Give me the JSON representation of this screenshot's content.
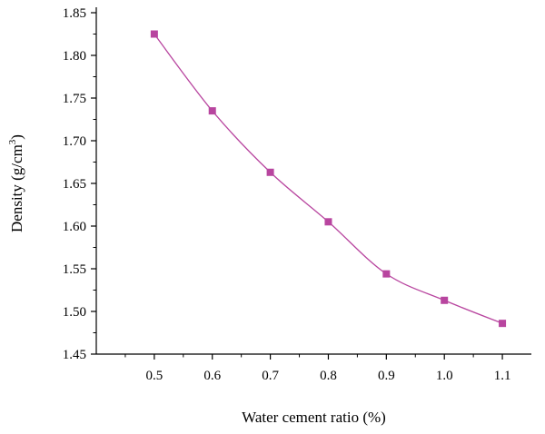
{
  "chart_data": {
    "type": "line",
    "title": "",
    "xlabel": "Water cement ratio (%)",
    "ylabel": "Density (g/cm³)",
    "ylabel_parts": {
      "main": "Density (g/cm",
      "sup": "3",
      "tail": ")"
    },
    "xlim": [
      0.4,
      1.15
    ],
    "ylim": [
      1.45,
      1.85
    ],
    "x_ticks": [
      0.5,
      0.6,
      0.7,
      0.8,
      0.9,
      1.0,
      1.1
    ],
    "x_tick_labels": [
      "0.5",
      "0.6",
      "0.7",
      "0.8",
      "0.9",
      "1.0",
      "1.1"
    ],
    "y_ticks": [
      1.45,
      1.5,
      1.55,
      1.6,
      1.65,
      1.7,
      1.75,
      1.8,
      1.85
    ],
    "y_tick_labels": [
      "1.45",
      "1.50",
      "1.55",
      "1.60",
      "1.65",
      "1.70",
      "1.75",
      "1.80",
      "1.85"
    ],
    "grid": false,
    "marker": "square",
    "color": "#b8459f",
    "series": [
      {
        "x": [
          0.5,
          0.6,
          0.7,
          0.8,
          0.9,
          1.0,
          1.1
        ],
        "y": [
          1.825,
          1.735,
          1.663,
          1.605,
          1.544,
          1.513,
          1.486
        ]
      }
    ]
  }
}
